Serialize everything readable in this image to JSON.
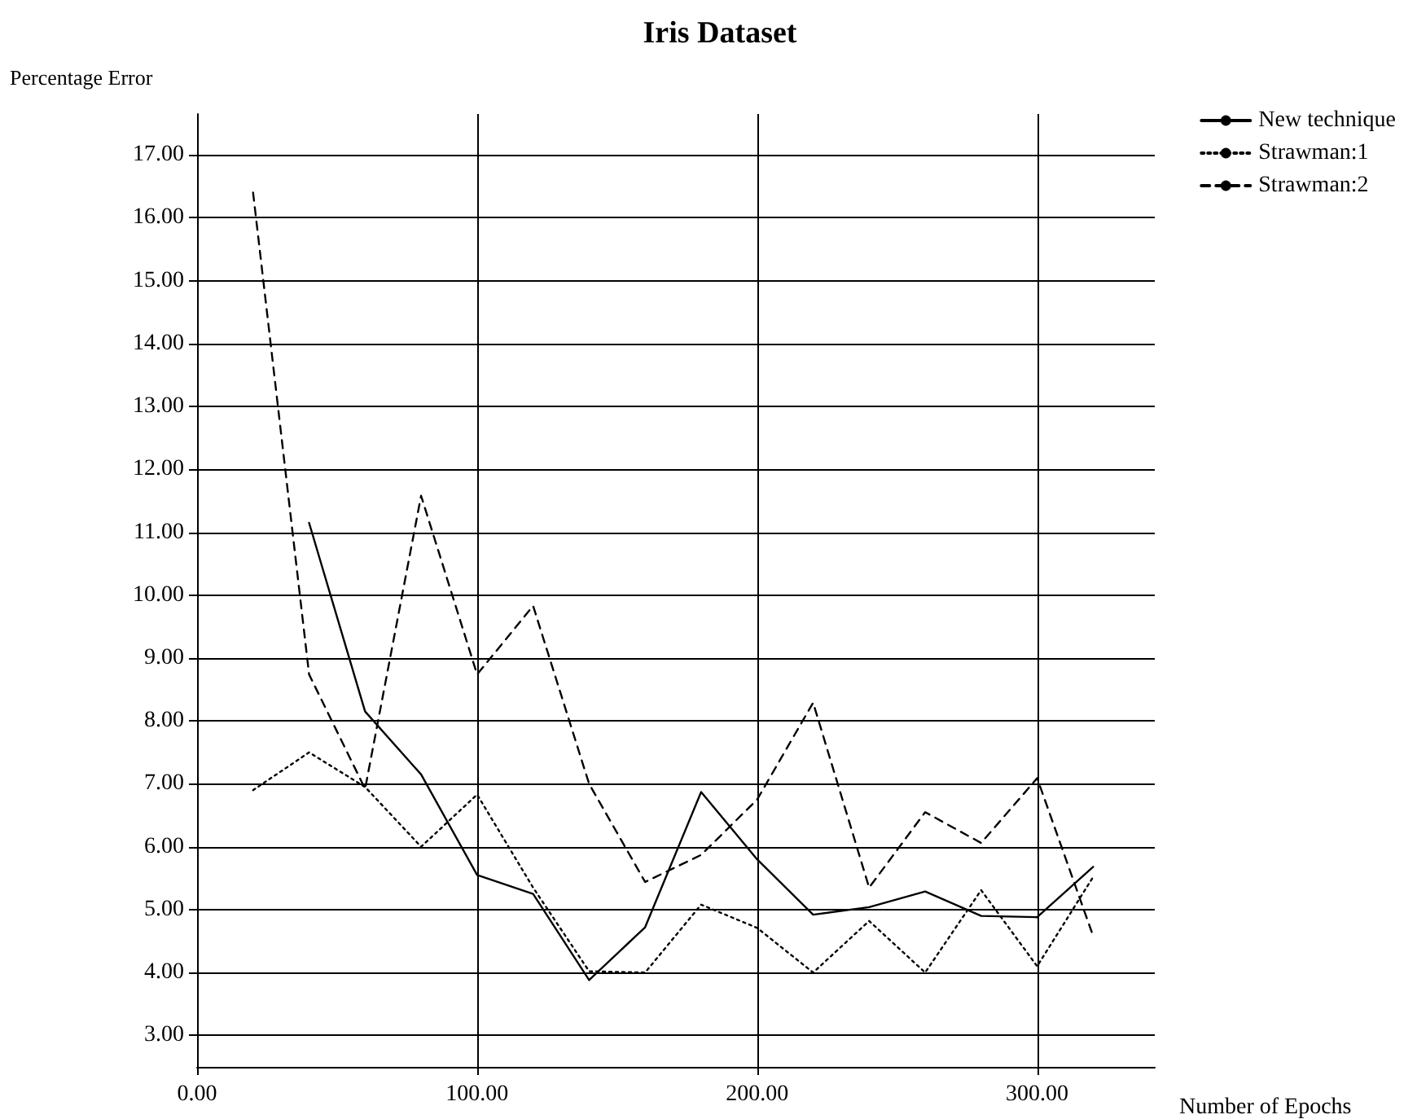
{
  "chart_data": {
    "type": "line",
    "title": "Iris Dataset",
    "xlabel": "Number of Epochs",
    "ylabel": "Percentage Error",
    "xlim": [
      0,
      342
    ],
    "ylim": [
      2.5,
      17.65
    ],
    "xticks": [
      {
        "value": 0,
        "label": "0.00"
      },
      {
        "value": 100,
        "label": "100.00"
      },
      {
        "value": 200,
        "label": "200.00"
      },
      {
        "value": 300,
        "label": "300.00"
      }
    ],
    "yticks": [
      {
        "value": 3,
        "label": "3.00"
      },
      {
        "value": 4,
        "label": "4.00"
      },
      {
        "value": 5,
        "label": "5.00"
      },
      {
        "value": 6,
        "label": "6.00"
      },
      {
        "value": 7,
        "label": "7.00"
      },
      {
        "value": 8,
        "label": "8.00"
      },
      {
        "value": 9,
        "label": "9.00"
      },
      {
        "value": 10,
        "label": "10.00"
      },
      {
        "value": 11,
        "label": "11.00"
      },
      {
        "value": 12,
        "label": "12.00"
      },
      {
        "value": 13,
        "label": "13.00"
      },
      {
        "value": 14,
        "label": "14.00"
      },
      {
        "value": 15,
        "label": "15.00"
      },
      {
        "value": 16,
        "label": "16.00"
      },
      {
        "value": 17,
        "label": "17.00"
      }
    ],
    "grid": true,
    "legend": "top right",
    "marker": "none",
    "series": [
      {
        "name": "New technique",
        "color": "#000000",
        "line_style": "solid",
        "x": [
          40,
          60,
          80,
          100,
          120,
          140,
          160,
          180,
          200,
          220,
          240,
          260,
          280,
          300,
          320
        ],
        "values": [
          11.15,
          8.15,
          7.15,
          5.55,
          5.25,
          3.88,
          4.72,
          6.87,
          5.8,
          4.92,
          5.04,
          5.29,
          4.9,
          4.88,
          5.68
        ]
      },
      {
        "name": "Strawman:1",
        "color": "#000000",
        "line_style": "dotted",
        "x": [
          20,
          40,
          60,
          80,
          100,
          120,
          140,
          160,
          180,
          200,
          220,
          240,
          260,
          280,
          300,
          320
        ],
        "values": [
          6.9,
          7.5,
          6.95,
          6.0,
          6.83,
          5.35,
          4.02,
          4.0,
          5.08,
          4.71,
          4.0,
          4.82,
          4.0,
          5.31,
          4.1,
          5.52
        ]
      },
      {
        "name": "Strawman:2",
        "color": "#000000",
        "line_style": "dashed",
        "x": [
          20,
          40,
          60,
          80,
          100,
          120,
          140,
          160,
          180,
          200,
          220,
          240,
          260,
          280,
          300,
          320
        ],
        "values": [
          16.4,
          8.74,
          6.92,
          11.58,
          8.74,
          9.83,
          7.0,
          5.44,
          5.87,
          6.75,
          8.29,
          5.35,
          6.55,
          6.06,
          7.09,
          4.58
        ]
      }
    ]
  }
}
